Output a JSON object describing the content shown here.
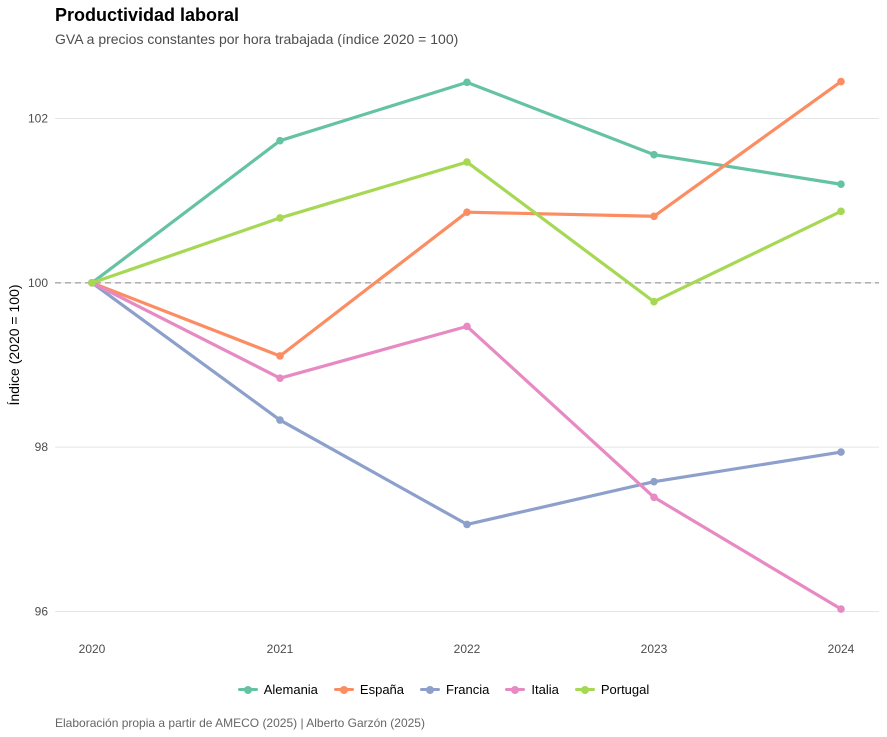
{
  "title": "Productividad laboral",
  "subtitle": "GVA a precios constantes por hora trabajada (índice 2020 = 100)",
  "caption": "Elaboración propia a partir de AMECO (2025) | Alberto Garzón (2025)",
  "chart_data": {
    "type": "line",
    "title": "Productividad laboral",
    "xlabel": "",
    "ylabel": "Índice (2020 = 100)",
    "x": [
      2020,
      2021,
      2022,
      2023,
      2024
    ],
    "xticks": [
      "2020",
      "2021",
      "2022",
      "2023",
      "2024"
    ],
    "yticks": [
      96,
      98,
      100,
      102
    ],
    "ylim": [
      95.8,
      102.9
    ],
    "reference_line": 100,
    "legend_position": "bottom",
    "series": [
      {
        "name": "Alemania",
        "color": "#66c2a5",
        "values": [
          100,
          101.73,
          102.44,
          101.56,
          101.2
        ]
      },
      {
        "name": "España",
        "color": "#fc8d62",
        "values": [
          100,
          99.11,
          100.86,
          100.81,
          102.45
        ]
      },
      {
        "name": "Francia",
        "color": "#8da0cb",
        "values": [
          100,
          98.33,
          97.06,
          97.58,
          97.94
        ]
      },
      {
        "name": "Italia",
        "color": "#e78ac3",
        "values": [
          100,
          98.84,
          99.47,
          97.39,
          96.03
        ]
      },
      {
        "name": "Portugal",
        "color": "#a6d854",
        "values": [
          100,
          100.79,
          101.47,
          99.77,
          100.87
        ]
      }
    ]
  }
}
